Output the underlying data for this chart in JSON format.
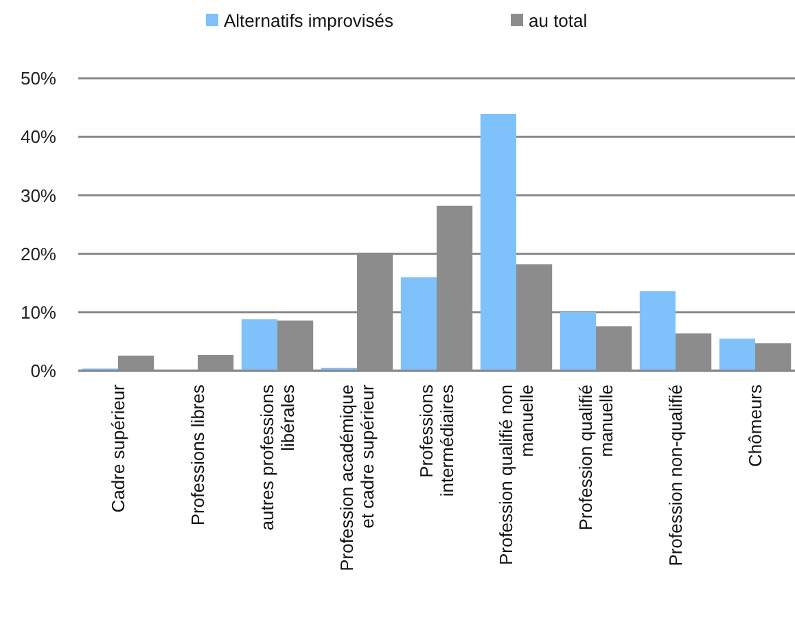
{
  "chart_data": {
    "type": "bar",
    "categories": [
      "Cadre supérieur",
      "Professions libres",
      "autres professions libérales",
      "Profession académique et cadre supérieur",
      "Professions intermédiaires",
      "Profession qualifié non manuelle",
      "Profession qualifié manuelle",
      "Profession non-qualifié",
      "Chômeurs"
    ],
    "series": [
      {
        "name": "Alternatifs improvisés",
        "color": "#7fc1fb",
        "values": [
          0.4,
          0,
          8.8,
          0.5,
          16.0,
          43.9,
          10.1,
          13.6,
          5.5
        ]
      },
      {
        "name": "au total",
        "color": "#8c8c8c",
        "values": [
          2.6,
          2.7,
          8.6,
          20.2,
          28.2,
          18.2,
          7.6,
          6.4,
          4.7
        ]
      }
    ],
    "ylim": [
      0,
      50
    ],
    "yticks": [
      {
        "value": 0,
        "label": "0%"
      },
      {
        "value": 10,
        "label": "10%"
      },
      {
        "value": 20,
        "label": "20%"
      },
      {
        "value": 30,
        "label": "30%"
      },
      {
        "value": 40,
        "label": "40%"
      },
      {
        "value": 50,
        "label": "50%"
      }
    ],
    "grid": "y",
    "legend": "top"
  }
}
